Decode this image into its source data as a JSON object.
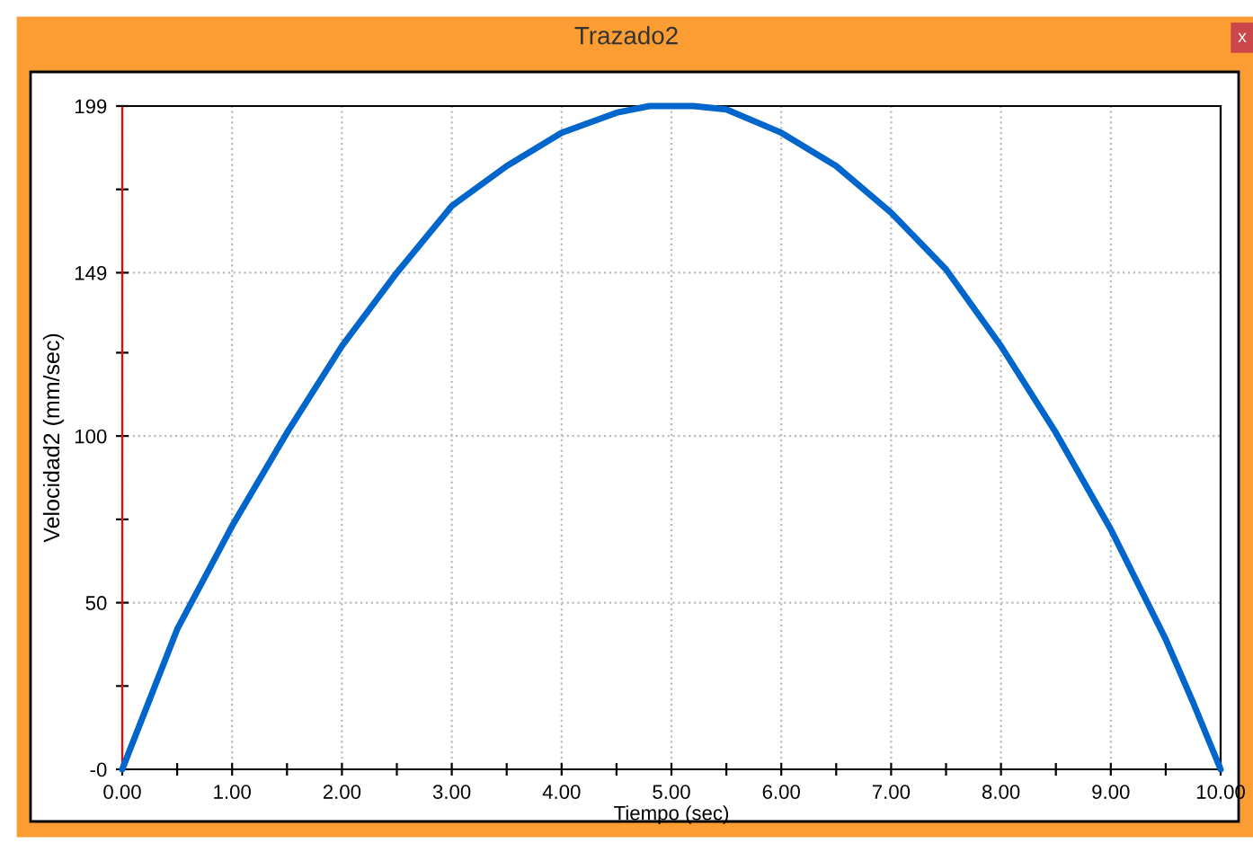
{
  "chart_data": {
    "type": "line",
    "title": "Trazado2",
    "xlabel": "Tiempo (sec)",
    "ylabel": "Velocidad2 (mm/sec)",
    "annotations": [
      "x"
    ],
    "x": [
      0,
      0.25,
      0.5,
      1,
      1.5,
      2,
      2.5,
      3,
      3.5,
      4,
      4.5,
      4.8,
      5,
      5.2,
      5.5,
      6,
      6.5,
      7,
      7.5,
      8,
      8.5,
      9,
      9.5,
      9.75,
      10
    ],
    "series": [
      {
        "color": "#0066cc",
        "values": [
          0,
          21,
          42,
          73,
          101,
          127,
          149,
          169,
          181,
          191,
          197,
          199,
          199,
          199,
          198,
          191,
          181,
          167,
          150,
          127,
          101,
          72,
          39,
          20,
          0
        ]
      }
    ],
    "xlim": [
      0,
      10
    ],
    "ylim": [
      0,
      199
    ],
    "xticks": [
      {
        "value": 0,
        "label": "0.00"
      },
      {
        "value": 0.5,
        "label": null
      },
      {
        "value": 1,
        "label": "1.00"
      },
      {
        "value": 1.5,
        "label": null
      },
      {
        "value": 2,
        "label": "2.00"
      },
      {
        "value": 2.5,
        "label": null
      },
      {
        "value": 3,
        "label": "3.00"
      },
      {
        "value": 3.5,
        "label": null
      },
      {
        "value": 4,
        "label": "4.00"
      },
      {
        "value": 4.5,
        "label": null
      },
      {
        "value": 5,
        "label": "5.00"
      },
      {
        "value": 5.5,
        "label": null
      },
      {
        "value": 6,
        "label": "6.00"
      },
      {
        "value": 6.5,
        "label": null
      },
      {
        "value": 7,
        "label": "7.00"
      },
      {
        "value": 7.5,
        "label": null
      },
      {
        "value": 8,
        "label": "8.00"
      },
      {
        "value": 8.5,
        "label": null
      },
      {
        "value": 9,
        "label": "9.00"
      },
      {
        "value": 9.5,
        "label": null
      },
      {
        "value": 10,
        "label": "10.00"
      }
    ],
    "yticks": [
      {
        "value": 0,
        "label": "-0"
      },
      {
        "value": 25,
        "label": null
      },
      50,
      {
        "value": 75,
        "label": null
      },
      100,
      {
        "value": 125,
        "label": null
      },
      149,
      {
        "value": 174,
        "label": null
      },
      199
    ],
    "grid": true,
    "line_style": "solid",
    "marker": "none"
  }
}
